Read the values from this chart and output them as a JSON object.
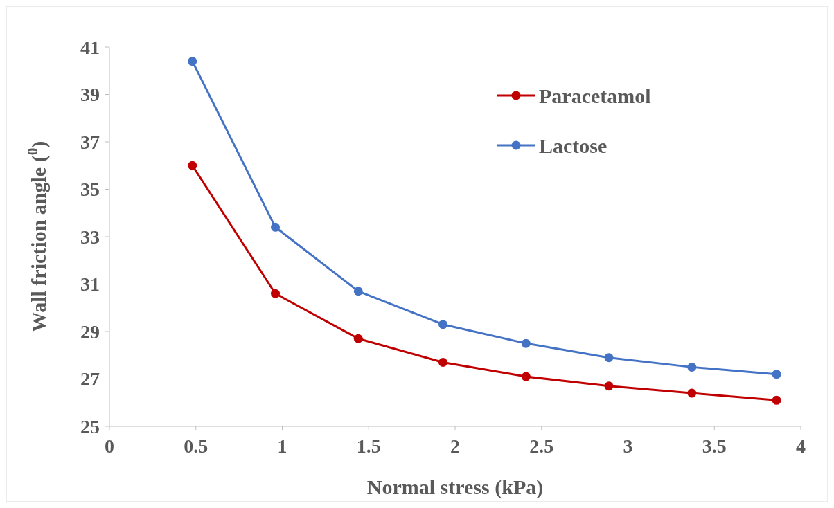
{
  "chart_data": {
    "type": "line",
    "xlabel": "Normal stress (kPa)",
    "ylabel": "Wall friction angle ($^{0}$)",
    "x": [
      0.48,
      0.96,
      1.44,
      1.93,
      2.41,
      2.89,
      3.37,
      3.86
    ],
    "series": [
      {
        "name": "Paracetamol",
        "color": "#c00000",
        "values": [
          36.0,
          30.6,
          28.7,
          27.7,
          27.1,
          26.7,
          26.4,
          26.1
        ]
      },
      {
        "name": "Lactose",
        "color": "#4472c4",
        "values": [
          40.4,
          33.4,
          30.7,
          29.3,
          28.5,
          27.9,
          27.5,
          27.2
        ]
      }
    ],
    "xlim": [
      0,
      4
    ],
    "xticks": [
      0,
      0.5,
      1,
      1.5,
      2,
      2.5,
      3,
      3.5,
      4
    ],
    "ylim": [
      25,
      41
    ],
    "yticks": [
      25,
      27,
      29,
      31,
      33,
      35,
      37,
      39,
      41
    ],
    "legend": "top right",
    "marker": "circle",
    "line_style": "solid"
  }
}
